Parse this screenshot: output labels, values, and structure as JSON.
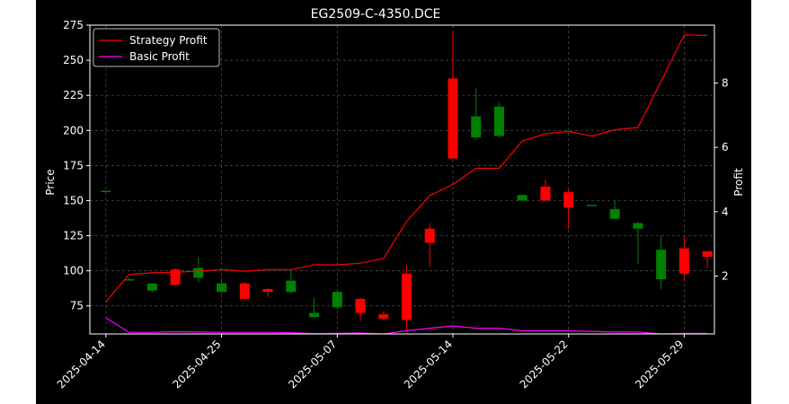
{
  "chart_data": {
    "type": "candlestick",
    "title": "EG2509-C-4350.DCE",
    "ylabel_left": "Price",
    "ylabel_right": "Profit",
    "ylim_left": [
      55,
      275
    ],
    "yticks_left": [
      75,
      100,
      125,
      150,
      175,
      200,
      225,
      250,
      275
    ],
    "ylim_right": [
      0.2,
      9.8
    ],
    "yticks_right": [
      2,
      4,
      6,
      8
    ],
    "grid": true,
    "legend_position": "top-left",
    "x_tick_labels": [
      "2025-04-14",
      "2025-04-25",
      "2025-05-07",
      "2025-05-14",
      "2025-05-22",
      "2025-05-29"
    ],
    "x_tick_index": [
      0,
      5,
      10,
      15,
      20,
      25
    ],
    "colors": {
      "up": "#008000",
      "down": "#ff0000",
      "strategy": "#ff0000",
      "basic": "#ff00ff",
      "background": "#000000",
      "text": "#ffffff"
    },
    "candles": [
      {
        "o": 157,
        "h": 157,
        "l": 157,
        "c": 157
      },
      {
        "o": 94,
        "h": 95,
        "l": 93,
        "c": 94
      },
      {
        "o": 86,
        "h": 91,
        "l": 85,
        "c": 91
      },
      {
        "o": 101,
        "h": 102,
        "l": 90,
        "c": 90
      },
      {
        "o": 95,
        "h": 110,
        "l": 92,
        "c": 102
      },
      {
        "o": 85,
        "h": 94,
        "l": 84,
        "c": 91
      },
      {
        "o": 91,
        "h": 92,
        "l": 80,
        "c": 80
      },
      {
        "o": 87,
        "h": 88,
        "l": 82,
        "c": 85
      },
      {
        "o": 85,
        "h": 100,
        "l": 84,
        "c": 93
      },
      {
        "o": 67,
        "h": 81,
        "l": 67,
        "c": 70
      },
      {
        "o": 74,
        "h": 86,
        "l": 73,
        "c": 85
      },
      {
        "o": 80,
        "h": 81,
        "l": 64,
        "c": 70
      },
      {
        "o": 69,
        "h": 71,
        "l": 65,
        "c": 66
      },
      {
        "o": 98,
        "h": 104,
        "l": 58,
        "c": 65
      },
      {
        "o": 130,
        "h": 134,
        "l": 103,
        "c": 120
      },
      {
        "o": 237,
        "h": 271,
        "l": 180,
        "c": 180
      },
      {
        "o": 195,
        "h": 230,
        "l": 194,
        "c": 210
      },
      {
        "o": 196,
        "h": 220,
        "l": 195,
        "c": 217
      },
      {
        "o": 150,
        "h": 154,
        "l": 150,
        "c": 154
      },
      {
        "o": 160,
        "h": 165,
        "l": 150,
        "c": 150
      },
      {
        "o": 156,
        "h": 158,
        "l": 130,
        "c": 145
      },
      {
        "o": 147,
        "h": 147,
        "l": 147,
        "c": 147
      },
      {
        "o": 137,
        "h": 150,
        "l": 137,
        "c": 144
      },
      {
        "o": 130,
        "h": 135,
        "l": 105,
        "c": 134
      },
      {
        "o": 94,
        "h": 125,
        "l": 87,
        "c": 115
      },
      {
        "o": 116,
        "h": 125,
        "l": 93,
        "c": 98
      },
      {
        "o": 114,
        "h": 114,
        "l": 102,
        "c": 110
      }
    ],
    "series": [
      {
        "name": "Strategy Profit",
        "values": [
          1.2,
          2.05,
          2.1,
          2.12,
          2.15,
          2.2,
          2.15,
          2.2,
          2.2,
          2.35,
          2.35,
          2.4,
          2.55,
          3.7,
          4.5,
          4.85,
          5.35,
          5.35,
          6.2,
          6.42,
          6.5,
          6.35,
          6.55,
          6.62,
          8.05,
          9.5,
          9.48
        ]
      },
      {
        "name": "Basic Profit",
        "values": [
          0.7,
          0.25,
          0.25,
          0.27,
          0.26,
          0.25,
          0.25,
          0.25,
          0.24,
          0.21,
          0.22,
          0.23,
          0.2,
          0.3,
          0.38,
          0.45,
          0.38,
          0.38,
          0.3,
          0.3,
          0.3,
          0.28,
          0.26,
          0.26,
          0.2,
          0.22,
          0.22
        ]
      }
    ]
  }
}
